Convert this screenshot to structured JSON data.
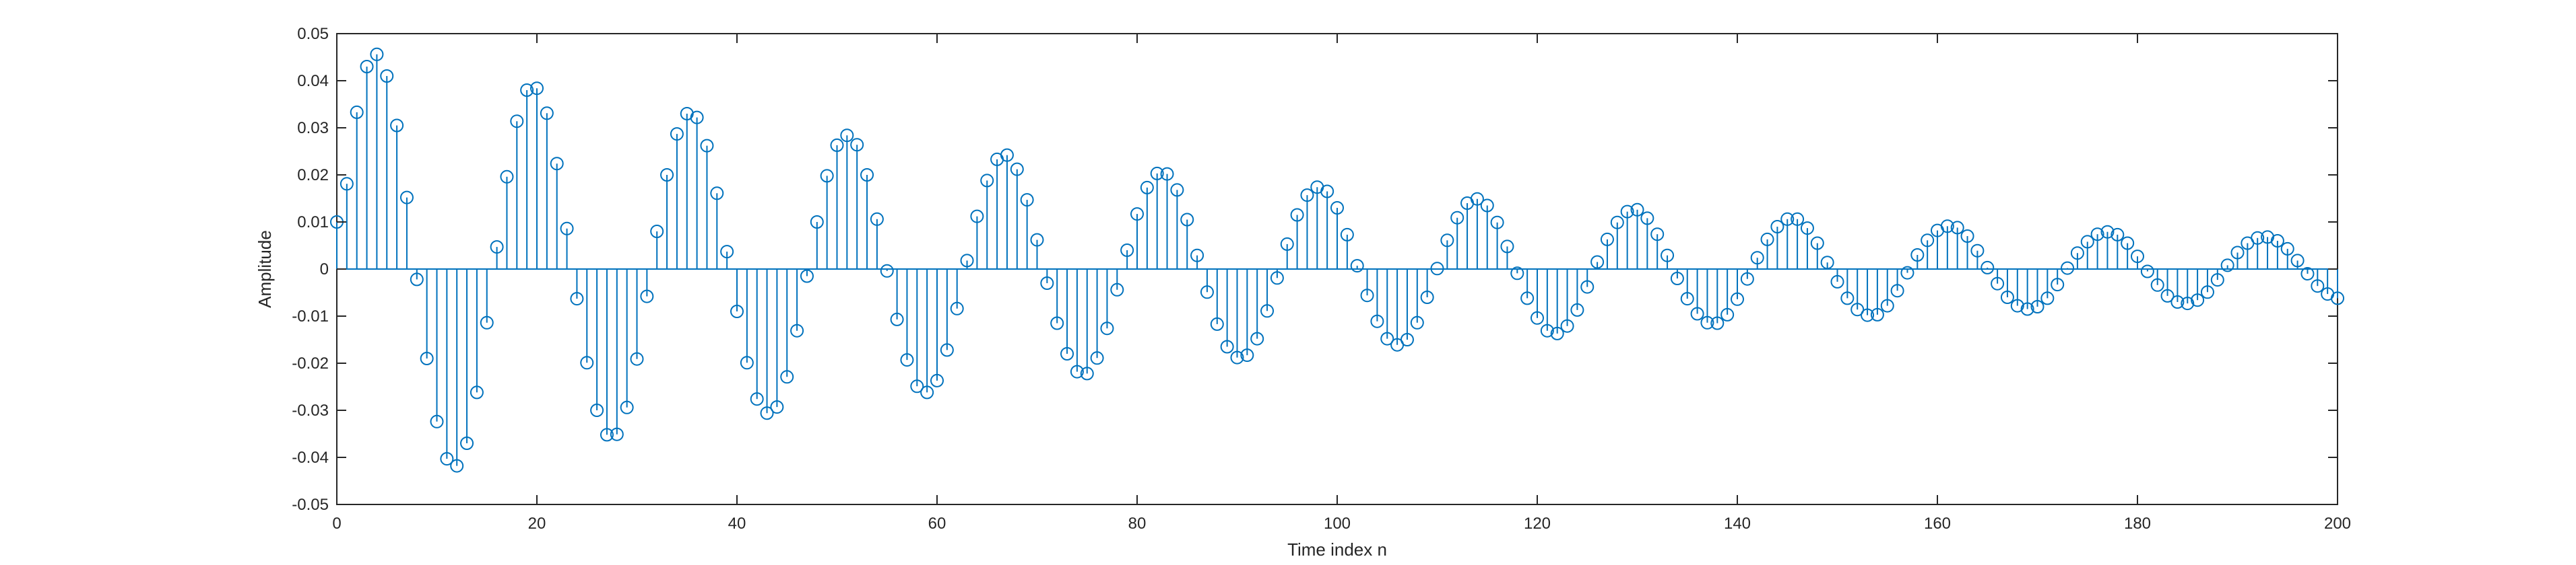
{
  "chart_data": {
    "type": "stem",
    "title": "",
    "xlabel": "Time index n",
    "ylabel": "Amplitude",
    "xlim": [
      0,
      200
    ],
    "ylim": [
      -0.05,
      0.05
    ],
    "xticks": [
      0,
      20,
      40,
      60,
      80,
      100,
      120,
      140,
      160,
      180,
      200
    ],
    "xtick_labels": [
      "0",
      "20",
      "40",
      "60",
      "80",
      "100",
      "120",
      "140",
      "160",
      "180",
      "200"
    ],
    "yticks": [
      -0.05,
      -0.04,
      -0.03,
      -0.02,
      -0.01,
      0,
      0.01,
      0.02,
      0.03,
      0.04,
      0.05
    ],
    "ytick_labels": [
      "-0.05",
      "-0.04",
      "-0.03",
      "-0.02",
      "-0.01",
      "0",
      "0.01",
      "0.02",
      "0.03",
      "0.04",
      "0.05"
    ],
    "grid": false,
    "series_color": "#0072BD",
    "axis_color": "#262626",
    "x": [
      0,
      1,
      2,
      3,
      4,
      5,
      6,
      7,
      8,
      9,
      10,
      11,
      12,
      13,
      14,
      15,
      16,
      17,
      18,
      19,
      20,
      21,
      22,
      23,
      24,
      25,
      26,
      27,
      28,
      29,
      30,
      31,
      32,
      33,
      34,
      35,
      36,
      37,
      38,
      39,
      40,
      41,
      42,
      43,
      44,
      45,
      46,
      47,
      48,
      49,
      50,
      51,
      52,
      53,
      54,
      55,
      56,
      57,
      58,
      59,
      60,
      61,
      62,
      63,
      64,
      65,
      66,
      67,
      68,
      69,
      70,
      71,
      72,
      73,
      74,
      75,
      76,
      77,
      78,
      79,
      80,
      81,
      82,
      83,
      84,
      85,
      86,
      87,
      88,
      89,
      90,
      91,
      92,
      93,
      94,
      95,
      96,
      97,
      98,
      99,
      100,
      101,
      102,
      103,
      104,
      105,
      106,
      107,
      108,
      109,
      110,
      111,
      112,
      113,
      114,
      115,
      116,
      117,
      118,
      119,
      120,
      121,
      122,
      123,
      124,
      125,
      126,
      127,
      128,
      129,
      130,
      131,
      132,
      133,
      134,
      135,
      136,
      137,
      138,
      139,
      140,
      141,
      142,
      143,
      144,
      145,
      146,
      147,
      148,
      149,
      150,
      151,
      152,
      153,
      154,
      155,
      156,
      157,
      158,
      159,
      160,
      161,
      162,
      163,
      164,
      165,
      166,
      167,
      168,
      169,
      170,
      171,
      172,
      173,
      174,
      175,
      176,
      177,
      178,
      179,
      180,
      181,
      182,
      183,
      184,
      185,
      186,
      187,
      188,
      189,
      190,
      191,
      192,
      193,
      194,
      195,
      196,
      197,
      198,
      199,
      200
    ],
    "y": [
      0.01,
      0.0181,
      0.0333,
      0.043,
      0.0456,
      0.041,
      0.0305,
      0.0152,
      -0.0022,
      -0.019,
      -0.0324,
      -0.0403,
      -0.0418,
      -0.037,
      -0.0262,
      -0.0114,
      0.0047,
      0.0196,
      0.0314,
      0.038,
      0.0384,
      0.0331,
      0.0224,
      0.0086,
      -0.0063,
      -0.0199,
      -0.03,
      -0.0352,
      -0.0351,
      -0.0294,
      -0.0191,
      -0.0058,
      0.008,
      0.02,
      0.0287,
      0.033,
      0.0322,
      0.0262,
      0.0161,
      0.0037,
      -0.009,
      -0.0199,
      -0.0276,
      -0.0306,
      -0.0293,
      -0.0229,
      -0.0131,
      -0.0015,
      0.01,
      0.0198,
      0.0263,
      0.0284,
      0.0264,
      0.02,
      0.0106,
      -0.0004,
      -0.0107,
      -0.0193,
      -0.0249,
      -0.0262,
      -0.0237,
      -0.0172,
      -0.0084,
      0.0018,
      0.0112,
      0.0188,
      0.0233,
      0.0242,
      0.0212,
      0.0147,
      0.0062,
      -0.003,
      -0.0115,
      -0.018,
      -0.0218,
      -0.0222,
      -0.0189,
      -0.0126,
      -0.0044,
      0.004,
      0.0117,
      0.0173,
      0.0203,
      0.0202,
      0.0168,
      0.0105,
      0.0029,
      -0.0049,
      -0.0117,
      -0.0165,
      -0.0188,
      -0.0183,
      -0.0148,
      -0.0089,
      -0.0019,
      0.0053,
      0.0115,
      0.0157,
      0.0174,
      0.0165,
      0.013,
      0.0073,
      0.0007,
      -0.0056,
      -0.0111,
      -0.0148,
      -0.0161,
      -0.015,
      -0.0114,
      -0.006,
      0.0001,
      0.0061,
      0.0109,
      0.014,
      0.0149,
      0.0135,
      0.0099,
      0.0048,
      -0.0009,
      -0.0062,
      -0.0104,
      -0.0131,
      -0.0137,
      -0.0121,
      -0.0087,
      -0.0038,
      0.0015,
      0.0063,
      0.0099,
      0.0122,
      0.0126,
      0.0108,
      0.0074,
      0.0029,
      -0.002,
      -0.0063,
      -0.0095,
      -0.0114,
      -0.0115,
      -0.0097,
      -0.0064,
      -0.0021,
      0.0024,
      0.0063,
      0.009,
      0.0106,
      0.0106,
      0.0087,
      0.0055,
      0.0014,
      -0.0027,
      -0.0062,
      -0.0086,
      -0.0098,
      -0.0097,
      -0.0078,
      -0.0046,
      -0.0008,
      0.003,
      0.0061,
      0.0082,
      0.0091,
      0.0088,
      0.007,
      0.0039,
      0.0003,
      -0.0031,
      -0.006,
      -0.0078,
      -0.0085,
      -0.008,
      -0.0062,
      -0.0033,
      0.0002,
      0.0034,
      0.0058,
      0.0074,
      0.0079,
      0.0073,
      0.0055,
      0.0027,
      -0.0005,
      -0.0034,
      -0.0057,
      -0.007,
      -0.0073,
      -0.0066,
      -0.0049,
      -0.0023,
      0.0008,
      0.0035,
      0.0055,
      0.0066,
      0.0068,
      0.006,
      0.0043,
      0.0018,
      -0.001,
      -0.0036,
      -0.0053,
      -0.0062
    ]
  }
}
